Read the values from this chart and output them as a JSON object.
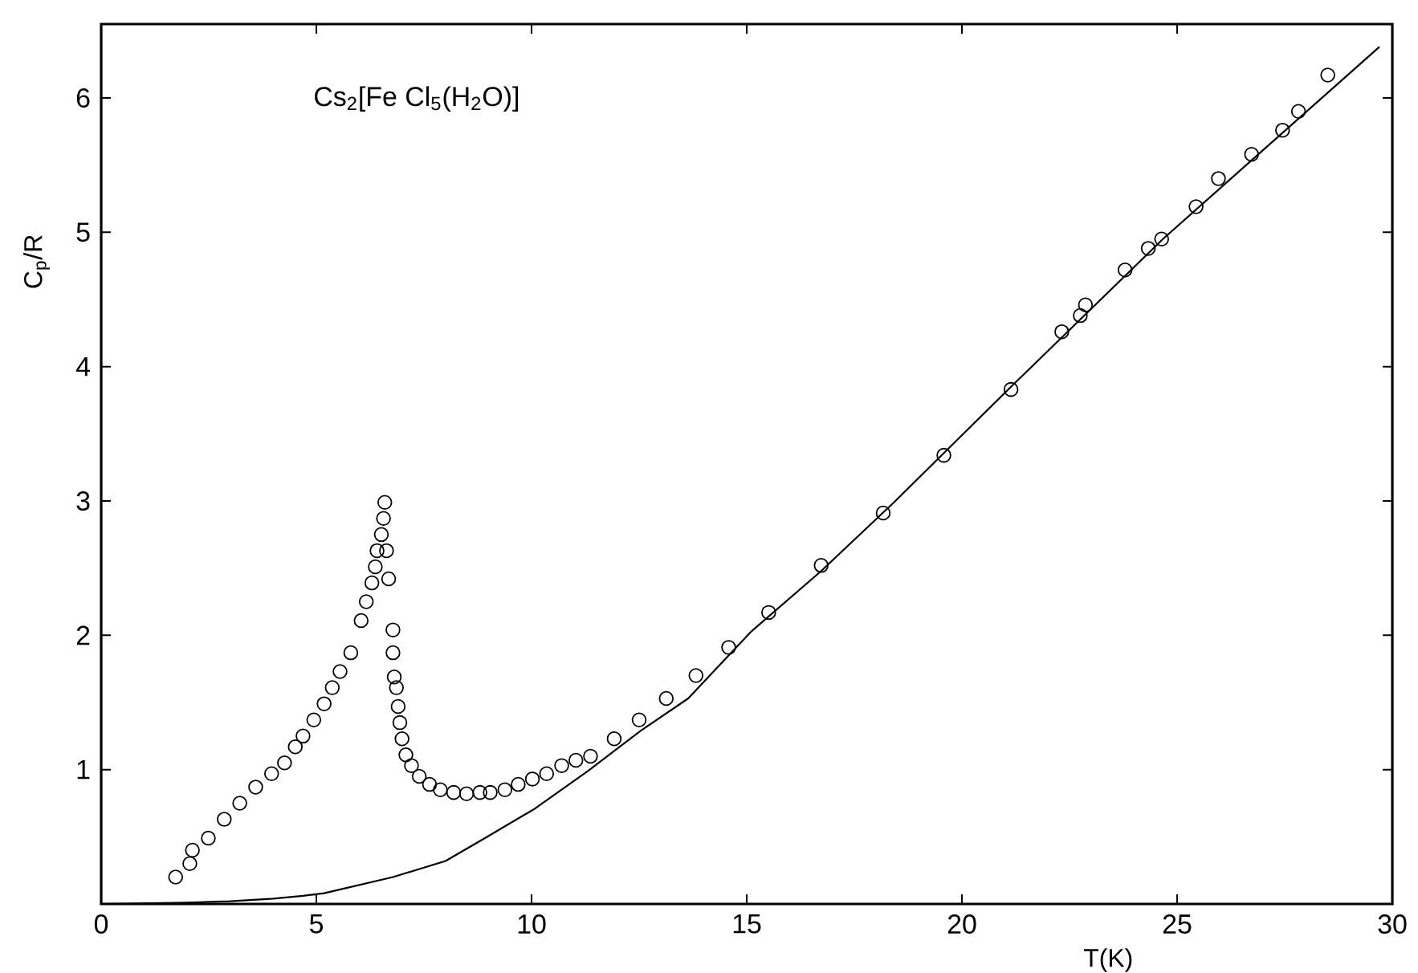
{
  "chart_data": {
    "type": "scatter",
    "xlabel": "T(K)",
    "ylabel": "C$_{p}$/R",
    "annotations": [
      "Cs$_{2}$[Fe Cl$_{5}$(H$_{2}$O)]"
    ],
    "xlim": [
      0,
      30
    ],
    "ylim": [
      0,
      6.55
    ],
    "xticks": [
      0,
      5,
      10,
      15,
      20,
      25,
      30
    ],
    "yticks": [
      1,
      2,
      3,
      4,
      5,
      6
    ],
    "grid": false,
    "series": [
      {
        "marker": "circle",
        "color": "#000000",
        "x": [
          1.73,
          2.06,
          2.12,
          2.49,
          2.86,
          3.22,
          3.59,
          3.96,
          4.26,
          4.51,
          4.69,
          4.94,
          5.18,
          5.37,
          5.55,
          5.8,
          6.04,
          6.16,
          6.29,
          6.37,
          6.41,
          6.51,
          6.56,
          6.59,
          6.63,
          6.68,
          6.78,
          6.78,
          6.81,
          6.86,
          6.9,
          6.94,
          6.99,
          7.08,
          7.21,
          7.39,
          7.63,
          7.88,
          8.19,
          8.49,
          8.8,
          9.04,
          9.38,
          9.69,
          10.02,
          10.35,
          10.7,
          11.03,
          11.37,
          11.92,
          12.5,
          13.13,
          13.82,
          14.58,
          15.51,
          16.73,
          18.17,
          19.58,
          21.14,
          22.32,
          22.75,
          22.87,
          23.79,
          24.33,
          24.64,
          25.44,
          25.96,
          26.73,
          27.45,
          27.82,
          28.5
        ],
        "values": [
          0.2,
          0.3,
          0.4,
          0.49,
          0.63,
          0.75,
          0.87,
          0.97,
          1.05,
          1.17,
          1.25,
          1.37,
          1.49,
          1.61,
          1.73,
          1.87,
          2.11,
          2.25,
          2.39,
          2.51,
          2.63,
          2.75,
          2.87,
          2.99,
          2.63,
          2.42,
          2.04,
          1.87,
          1.69,
          1.61,
          1.47,
          1.35,
          1.23,
          1.11,
          1.03,
          0.95,
          0.89,
          0.85,
          0.83,
          0.82,
          0.83,
          0.83,
          0.85,
          0.89,
          0.93,
          0.97,
          1.03,
          1.07,
          1.1,
          1.23,
          1.37,
          1.53,
          1.7,
          1.91,
          2.17,
          2.52,
          2.91,
          3.34,
          3.83,
          4.26,
          4.38,
          4.46,
          4.72,
          4.88,
          4.95,
          5.19,
          5.4,
          5.58,
          5.76,
          5.9,
          6.17
        ]
      },
      {
        "type": "line",
        "marker": "none",
        "line_style": "solid",
        "color": "#000000",
        "x": [
          0,
          2,
          3,
          4,
          4.69,
          5.18,
          6.78,
          8.0,
          8.86,
          10.08,
          11.31,
          12.54,
          13.64,
          15.11,
          16.7,
          18.42,
          21.14,
          24.67,
          29.7
        ],
        "values": [
          0,
          0.01,
          0.02,
          0.04,
          0.06,
          0.08,
          0.2,
          0.32,
          0.48,
          0.71,
          0.99,
          1.29,
          1.53,
          2.03,
          2.47,
          2.99,
          3.85,
          4.95,
          6.38
        ]
      }
    ]
  }
}
